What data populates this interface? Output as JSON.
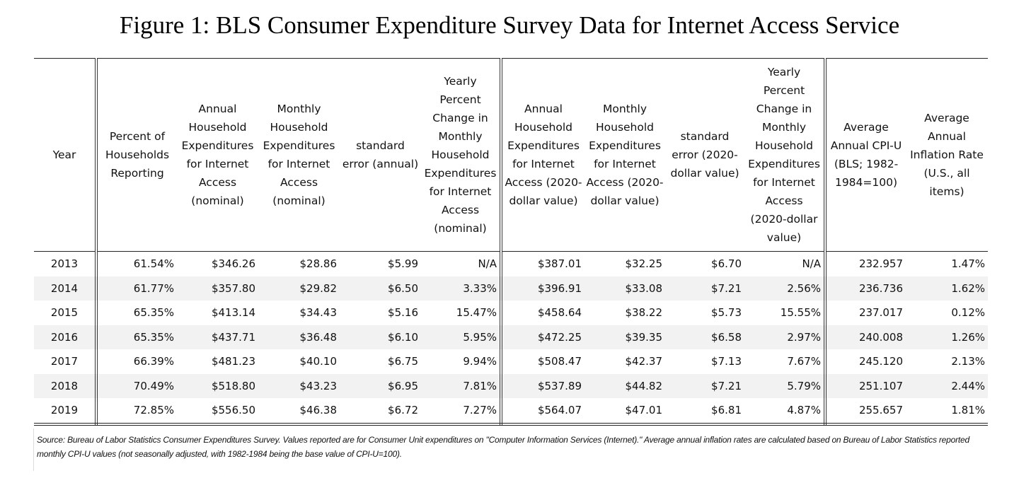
{
  "title": "Figure 1: BLS Consumer Expenditure Survey Data for Internet Access Service",
  "columns": [
    "Year",
    "Percent of Households Reporting",
    "Annual Household Expenditures for Internet Access (nominal)",
    "Monthly Household Expenditures for Internet Access (nominal)",
    "standard error (annual)",
    "Yearly Percent Change in Monthly Household Expenditures for Internet Access (nominal)",
    "Annual Household Expenditures for Internet Access (2020-dollar value)",
    "Monthly Household Expenditures for Internet Access (2020-dollar value)",
    "standard error (2020-dollar value)",
    "Yearly Percent Change in Monthly Household Expenditures for Internet Access (2020-dollar value)",
    "Average Annual CPI-U (BLS; 1982-1984=100)",
    "Average Annual Inflation Rate (U.S., all items)"
  ],
  "rows": [
    [
      "2013",
      "61.54%",
      "$346.26",
      "$28.86",
      "$5.99",
      "N/A",
      "$387.01",
      "$32.25",
      "$6.70",
      "N/A",
      "232.957",
      "1.47%"
    ],
    [
      "2014",
      "61.77%",
      "$357.80",
      "$29.82",
      "$6.50",
      "3.33%",
      "$396.91",
      "$33.08",
      "$7.21",
      "2.56%",
      "236.736",
      "1.62%"
    ],
    [
      "2015",
      "65.35%",
      "$413.14",
      "$34.43",
      "$5.16",
      "15.47%",
      "$458.64",
      "$38.22",
      "$5.73",
      "15.55%",
      "237.017",
      "0.12%"
    ],
    [
      "2016",
      "65.35%",
      "$437.71",
      "$36.48",
      "$6.10",
      "5.95%",
      "$472.25",
      "$39.35",
      "$6.58",
      "2.97%",
      "240.008",
      "1.26%"
    ],
    [
      "2017",
      "66.39%",
      "$481.23",
      "$40.10",
      "$6.75",
      "9.94%",
      "$508.47",
      "$42.37",
      "$7.13",
      "7.67%",
      "245.120",
      "2.13%"
    ],
    [
      "2018",
      "70.49%",
      "$518.80",
      "$43.23",
      "$6.95",
      "7.81%",
      "$537.89",
      "$44.82",
      "$7.21",
      "5.79%",
      "251.107",
      "2.44%"
    ],
    [
      "2019",
      "72.85%",
      "$556.50",
      "$46.38",
      "$6.72",
      "7.27%",
      "$564.07",
      "$47.01",
      "$6.81",
      "4.87%",
      "255.657",
      "1.81%"
    ]
  ],
  "note": "Source: Bureau of Labor Statistics Consumer Expenditures Survey. Values reported are for Consumer Unit expenditures on \"Computer Information Services (Internet).\" Average annual inflation rates are calculated based on Bureau of Labor Statistics reported monthly CPI-U values (not seasonally adjusted, with 1982-1984 being the base value of CPI-U=100)."
}
